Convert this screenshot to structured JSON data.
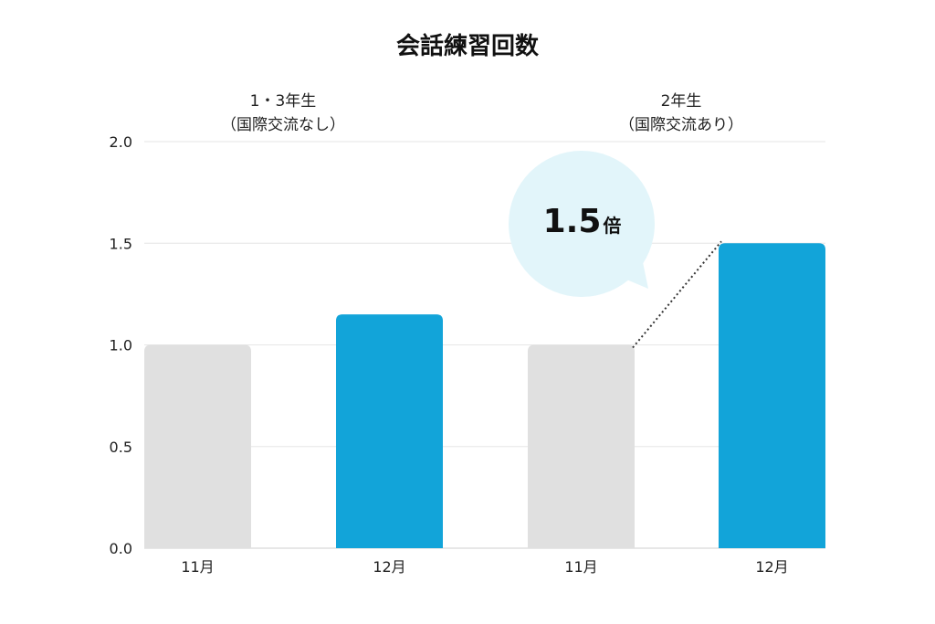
{
  "chart_data": {
    "type": "bar",
    "title": "会話練習回数",
    "groups": [
      {
        "label_line1": "1・3年生",
        "label_line2": "（国際交流なし）"
      },
      {
        "label_line1": "2年生",
        "label_line2": "（国際交流あり）"
      }
    ],
    "categories": [
      "11月",
      "12月",
      "11月",
      "12月"
    ],
    "values": [
      1.0,
      1.15,
      1.0,
      1.5
    ],
    "bar_colors": [
      "#e0e0e0",
      "#12a4d9",
      "#e0e0e0",
      "#12a4d9"
    ],
    "ylim": [
      0,
      2.0
    ],
    "yticks": [
      "0.0",
      "0.5",
      "1.0",
      "1.5",
      "2.0"
    ],
    "grid": true,
    "annotation": {
      "value": "1.5",
      "unit": "倍",
      "bubble_color": "#e2f5fa"
    }
  }
}
